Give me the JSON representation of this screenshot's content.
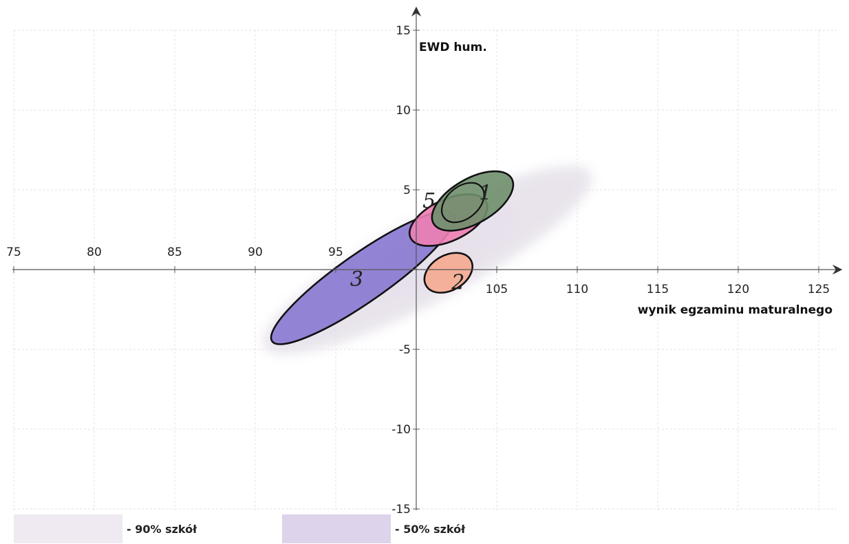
{
  "chart_data": {
    "type": "scatter",
    "title": "",
    "xlabel": "wynik egzaminu maturalnego",
    "ylabel": "EWD hum.",
    "xlim": [
      75,
      126
    ],
    "ylim": [
      -15,
      16
    ],
    "xticks": [
      75,
      80,
      85,
      90,
      95,
      105,
      110,
      115,
      120,
      125
    ],
    "yticks": [
      15,
      10,
      5,
      -5,
      -10,
      -15
    ],
    "grid": true,
    "legend_position": "bottom-left",
    "regions": [
      {
        "name": "90% szkół",
        "kind": "band",
        "cx": 100.7,
        "cy": 0.6,
        "rx": 11.5,
        "ry": 2.6,
        "angle_deg": -28,
        "color": "#e7e2ea"
      },
      {
        "name": "50% szkół",
        "kind": "band",
        "cx": 101.5,
        "cy": 1.0,
        "rx": 5.8,
        "ry": 1.6,
        "angle_deg": -28,
        "color": "#e7e0ec"
      }
    ],
    "ellipses": [
      {
        "label": "3",
        "cx": 96.7,
        "cy": -0.5,
        "rx": 6.9,
        "ry": 1.5,
        "angle_deg": -35,
        "fill": "#8878d2"
      },
      {
        "label": "5",
        "cx": 102.0,
        "cy": 3.1,
        "rx": 2.6,
        "ry": 1.3,
        "angle_deg": -25,
        "fill": "#ee7fb4"
      },
      {
        "label": "1",
        "cx": 103.5,
        "cy": 4.3,
        "rx": 2.8,
        "ry": 1.4,
        "angle_deg": -30,
        "fill": "#6e8f6c"
      },
      {
        "label": "2",
        "cx": 102.0,
        "cy": -0.2,
        "rx": 1.6,
        "ry": 1.1,
        "angle_deg": -30,
        "fill": "#f5aa90"
      }
    ]
  },
  "legend": {
    "items": [
      {
        "label": "- 90% szkół",
        "color": "#efe9f1"
      },
      {
        "label": "- 50% szkół",
        "color": "#ddd3ea"
      }
    ]
  }
}
